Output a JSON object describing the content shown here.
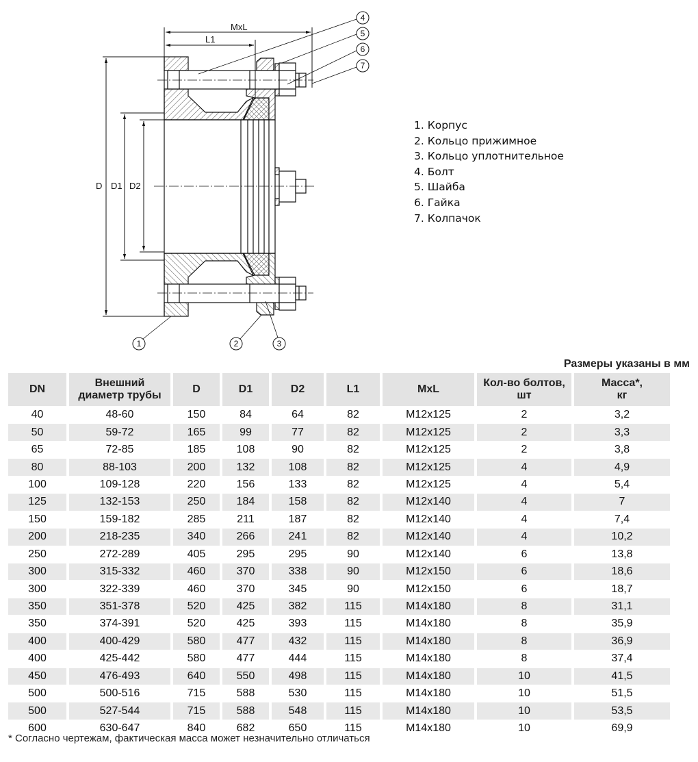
{
  "drawing": {
    "dimensions": {
      "mxl": "MxL",
      "l1": "L1",
      "d": "D",
      "d1": "D1",
      "d2": "D2"
    },
    "callouts": [
      "1",
      "2",
      "3",
      "4",
      "5",
      "6",
      "7"
    ]
  },
  "legend": [
    "1. Корпус",
    "2. Кольцо прижимное",
    "3. Кольцо уплотнительное",
    "4. Болт",
    "5. Шайба",
    "6. Гайка",
    "7. Колпачок"
  ],
  "units_note": "Размеры указаны в мм",
  "table": {
    "headers": [
      {
        "line1": "DN",
        "line2": ""
      },
      {
        "line1": "Внешний",
        "line2": "диаметр трубы"
      },
      {
        "line1": "D",
        "line2": ""
      },
      {
        "line1": "D1",
        "line2": ""
      },
      {
        "line1": "D2",
        "line2": ""
      },
      {
        "line1": "L1",
        "line2": ""
      },
      {
        "line1": "MxL",
        "line2": ""
      },
      {
        "line1": "Кол-во болтов,",
        "line2": "шт"
      },
      {
        "line1": "Масса*,",
        "line2": "кг"
      }
    ],
    "rows": [
      [
        "40",
        "48-60",
        "150",
        "84",
        "64",
        "82",
        "M12x125",
        "2",
        "3,2"
      ],
      [
        "50",
        "59-72",
        "165",
        "99",
        "77",
        "82",
        "M12x125",
        "2",
        "3,3"
      ],
      [
        "65",
        "72-85",
        "185",
        "108",
        "90",
        "82",
        "M12x125",
        "2",
        "3,8"
      ],
      [
        "80",
        "88-103",
        "200",
        "132",
        "108",
        "82",
        "M12x125",
        "4",
        "4,9"
      ],
      [
        "100",
        "109-128",
        "220",
        "156",
        "133",
        "82",
        "M12x125",
        "4",
        "5,4"
      ],
      [
        "125",
        "132-153",
        "250",
        "184",
        "158",
        "82",
        "M12x140",
        "4",
        "7"
      ],
      [
        "150",
        "159-182",
        "285",
        "211",
        "187",
        "82",
        "M12x140",
        "4",
        "7,4"
      ],
      [
        "200",
        "218-235",
        "340",
        "266",
        "241",
        "82",
        "M12x140",
        "4",
        "10,2"
      ],
      [
        "250",
        "272-289",
        "405",
        "295",
        "295",
        "90",
        "M12x140",
        "6",
        "13,8"
      ],
      [
        "300",
        "315-332",
        "460",
        "370",
        "338",
        "90",
        "M12x150",
        "6",
        "18,6"
      ],
      [
        "300",
        "322-339",
        "460",
        "370",
        "345",
        "90",
        "M12x150",
        "6",
        "18,7"
      ],
      [
        "350",
        "351-378",
        "520",
        "425",
        "382",
        "115",
        "M14x180",
        "8",
        "31,1"
      ],
      [
        "350",
        "374-391",
        "520",
        "425",
        "393",
        "115",
        "M14x180",
        "8",
        "35,9"
      ],
      [
        "400",
        "400-429",
        "580",
        "477",
        "432",
        "115",
        "M14x180",
        "8",
        "36,9"
      ],
      [
        "400",
        "425-442",
        "580",
        "477",
        "444",
        "115",
        "M14x180",
        "8",
        "37,4"
      ],
      [
        "450",
        "476-493",
        "640",
        "550",
        "498",
        "115",
        "M14x180",
        "10",
        "41,5"
      ],
      [
        "500",
        "500-516",
        "715",
        "588",
        "530",
        "115",
        "M14x180",
        "10",
        "51,5"
      ],
      [
        "500",
        "527-544",
        "715",
        "588",
        "548",
        "115",
        "M14x180",
        "10",
        "53,5"
      ],
      [
        "600",
        "630-647",
        "840",
        "682",
        "650",
        "115",
        "M14x180",
        "10",
        "69,9"
      ]
    ]
  },
  "footnote": "* Согласно чертежам, фактическая масса может незначительно отличаться"
}
